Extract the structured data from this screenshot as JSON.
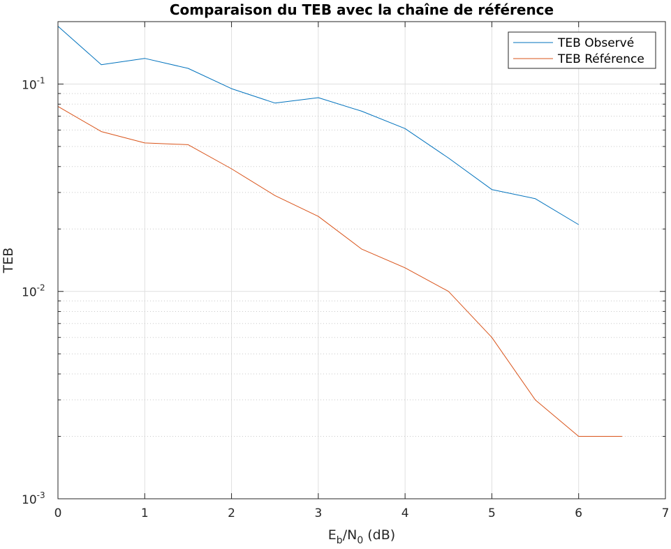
{
  "chart_data": {
    "type": "line",
    "title": "Comparaison du TEB avec la chaîne de référence",
    "xlabel": {
      "base": "E",
      "sub1": "b",
      "mid": "/N",
      "sub2": "0",
      "tail": " (dB)"
    },
    "ylabel": "TEB",
    "xlim": [
      0,
      7
    ],
    "ylim": [
      0.001,
      0.2
    ],
    "yscale": "log",
    "grid": true,
    "legend_position": "top-right",
    "x_ticks": [
      "0",
      "1",
      "2",
      "3",
      "4",
      "5",
      "6",
      "7"
    ],
    "y_ticks": [
      {
        "base": "10",
        "exp": "-1"
      },
      {
        "base": "10",
        "exp": "-2"
      },
      {
        "base": "10",
        "exp": "-3"
      }
    ],
    "x": [
      0,
      0.5,
      1,
      1.5,
      2,
      2.5,
      3,
      3.5,
      4,
      4.5,
      5,
      5.5,
      6,
      6.5
    ],
    "series": [
      {
        "name": "TEB Observé",
        "color": "#0072BD",
        "values": [
          0.19,
          0.124,
          0.133,
          0.119,
          0.095,
          0.081,
          0.086,
          0.074,
          0.061,
          0.044,
          0.031,
          0.028,
          0.021,
          null
        ]
      },
      {
        "name": "TEB Référence",
        "color": "#D95319",
        "values": [
          0.078,
          0.059,
          0.052,
          0.051,
          0.039,
          0.029,
          0.023,
          0.016,
          0.013,
          0.01,
          0.006,
          0.003,
          0.002,
          0.002
        ]
      }
    ]
  }
}
